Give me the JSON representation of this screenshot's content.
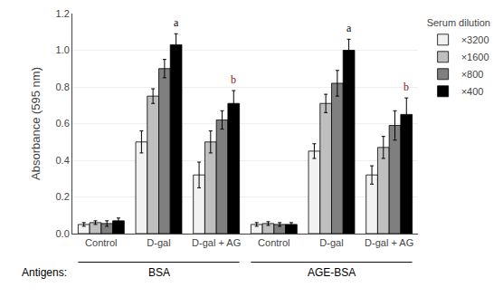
{
  "chart_data": {
    "type": "bar",
    "ylabel": "Absorbance (595 nm)",
    "categories": [
      "Control",
      "D-gal",
      "D-gal + AG",
      "Control",
      "D-gal",
      "D-gal + AG"
    ],
    "series": [
      {
        "name": "×3200",
        "color": "#f2f2f2",
        "values": [
          0.05,
          0.5,
          0.32,
          0.05,
          0.45,
          0.32
        ],
        "errors": [
          0.01,
          0.06,
          0.07,
          0.01,
          0.04,
          0.05
        ]
      },
      {
        "name": "×1600",
        "color": "#bfbfbf",
        "values": [
          0.06,
          0.75,
          0.5,
          0.055,
          0.71,
          0.47
        ],
        "errors": [
          0.01,
          0.04,
          0.06,
          0.01,
          0.05,
          0.06
        ]
      },
      {
        "name": "×800",
        "color": "#7f7f7f",
        "values": [
          0.055,
          0.9,
          0.62,
          0.05,
          0.82,
          0.59
        ],
        "errors": [
          0.015,
          0.05,
          0.05,
          0.01,
          0.07,
          0.08
        ]
      },
      {
        "name": "×400",
        "color": "#000000",
        "values": [
          0.07,
          1.03,
          0.71,
          0.05,
          1.0,
          0.65
        ],
        "errors": [
          0.015,
          0.06,
          0.07,
          0.01,
          0.06,
          0.09
        ]
      }
    ],
    "legend_title": "Serum dilution",
    "legend": "upper right",
    "ylim": [
      0,
      1.2
    ],
    "yticks": [
      {
        "value": 0,
        "label": "0.0"
      },
      0.2,
      0.4,
      0.6,
      0.8,
      {
        "value": 1.0,
        "label": "1.0"
      },
      1.2
    ],
    "grid": true,
    "annotations": [
      {
        "text": "a",
        "category": 1,
        "series": 3,
        "color": "#000000"
      },
      {
        "text": "b",
        "category": 2,
        "series": 3,
        "color": "#8B2020"
      },
      {
        "text": "a",
        "category": 4,
        "series": 3,
        "color": "#000000"
      },
      {
        "text": "b",
        "category": 5,
        "series": 3,
        "color": "#8B2020"
      }
    ],
    "sections_label": "Antigens:",
    "sections": [
      {
        "text": "BSA",
        "from": 0,
        "to": 2
      },
      {
        "text": "AGE-BSA",
        "from": 3,
        "to": 5
      }
    ]
  }
}
